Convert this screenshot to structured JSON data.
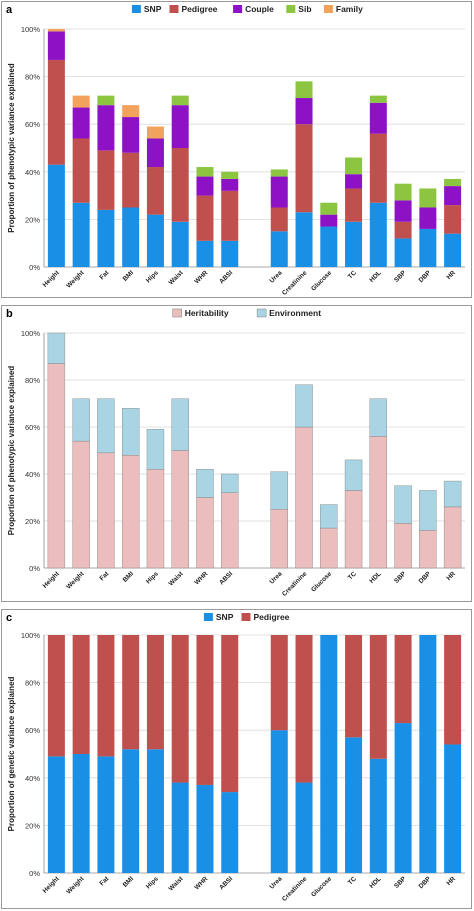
{
  "colors": {
    "snp": "#1a8fe6",
    "pedigree": "#c0504d",
    "couple": "#8d12c6",
    "sib": "#8cc640",
    "family": "#f2a25a",
    "heritability": "#ebbdbd",
    "environment": "#a9d4e3",
    "grid": "#d9d9d9",
    "axis": "#8c8c8c"
  },
  "chart_data": [
    {
      "panel": "a",
      "type": "bar",
      "stacked": true,
      "ylabel": "Proportion of phenotypic variance explained",
      "ylim": [
        0,
        100
      ],
      "yticks": [
        "0%",
        "20%",
        "40%",
        "60%",
        "80%",
        "100%"
      ],
      "legend_position": "top",
      "grid": true,
      "categories": [
        "Height",
        "Weight",
        "Fat",
        "BMI",
        "Hips",
        "Waist",
        "WHR",
        "ABSI",
        "",
        "Urea",
        "Creatinine",
        "Glucose",
        "TC",
        "HDL",
        "SBP",
        "DBP",
        "HR"
      ],
      "series": [
        {
          "name": "SNP",
          "color_key": "snp",
          "values": [
            43,
            27,
            24,
            25,
            22,
            19,
            11,
            11,
            null,
            15,
            23,
            17,
            19,
            27,
            12,
            16,
            14
          ]
        },
        {
          "name": "Pedigree",
          "color_key": "pedigree",
          "values": [
            44,
            27,
            25,
            23,
            20,
            31,
            19,
            21,
            null,
            10,
            37,
            0,
            14,
            29,
            7,
            0,
            12
          ]
        },
        {
          "name": "Couple",
          "color_key": "couple",
          "values": [
            12,
            13,
            19,
            15,
            12,
            18,
            8,
            5,
            null,
            13,
            11,
            5,
            6,
            13,
            9,
            9,
            8
          ]
        },
        {
          "name": "Sib",
          "color_key": "sib",
          "values": [
            0,
            0,
            4,
            0,
            0,
            4,
            4,
            3,
            null,
            3,
            7,
            5,
            7,
            3,
            7,
            8,
            3
          ]
        },
        {
          "name": "Family",
          "color_key": "family",
          "values": [
            1,
            5,
            0,
            5,
            5,
            0,
            0,
            0,
            null,
            0,
            0,
            0,
            0,
            0,
            0,
            0,
            0
          ]
        }
      ]
    },
    {
      "panel": "b",
      "type": "bar",
      "stacked": true,
      "ylabel": "Proportion of phenotypic variance explained",
      "ylim": [
        0,
        100
      ],
      "yticks": [
        "0%",
        "20%",
        "40%",
        "60%",
        "80%",
        "100%"
      ],
      "legend_position": "top",
      "grid": true,
      "categories": [
        "Height",
        "Weight",
        "Fat",
        "BMI",
        "Hips",
        "Waist",
        "WHR",
        "ABSI",
        "",
        "Urea",
        "Creatinine",
        "Glucose",
        "TC",
        "HDL",
        "SBP",
        "DBP",
        "HR"
      ],
      "series": [
        {
          "name": "Heritability",
          "color_key": "heritability",
          "values": [
            87,
            54,
            49,
            48,
            42,
            50,
            30,
            32,
            null,
            25,
            60,
            17,
            33,
            56,
            19,
            16,
            26
          ]
        },
        {
          "name": "Environment",
          "color_key": "environment",
          "values": [
            13,
            18,
            23,
            20,
            17,
            22,
            12,
            8,
            null,
            16,
            18,
            10,
            13,
            16,
            16,
            17,
            11
          ]
        }
      ]
    },
    {
      "panel": "c",
      "type": "bar",
      "stacked": true,
      "ylabel": "Proportion of genetic variance explained",
      "ylim": [
        0,
        100
      ],
      "yticks": [
        "0%",
        "20%",
        "40%",
        "60%",
        "80%",
        "100%"
      ],
      "legend_position": "top",
      "grid": true,
      "categories": [
        "Height",
        "Weight",
        "Fat",
        "BMI",
        "Hips",
        "Waist",
        "WHR",
        "ABSI",
        "",
        "Urea",
        "Creatinine",
        "Glucose",
        "TC",
        "HDL",
        "SBP",
        "DBP",
        "HR"
      ],
      "series": [
        {
          "name": "SNP",
          "color_key": "snp",
          "values": [
            49,
            50,
            49,
            52,
            52,
            38,
            37,
            34,
            null,
            60,
            38,
            100,
            57,
            48,
            63,
            100,
            54
          ]
        },
        {
          "name": "Pedigree",
          "color_key": "pedigree",
          "values": [
            51,
            50,
            51,
            48,
            48,
            62,
            63,
            66,
            null,
            40,
            62,
            0,
            43,
            52,
            37,
            0,
            46
          ]
        }
      ]
    }
  ]
}
